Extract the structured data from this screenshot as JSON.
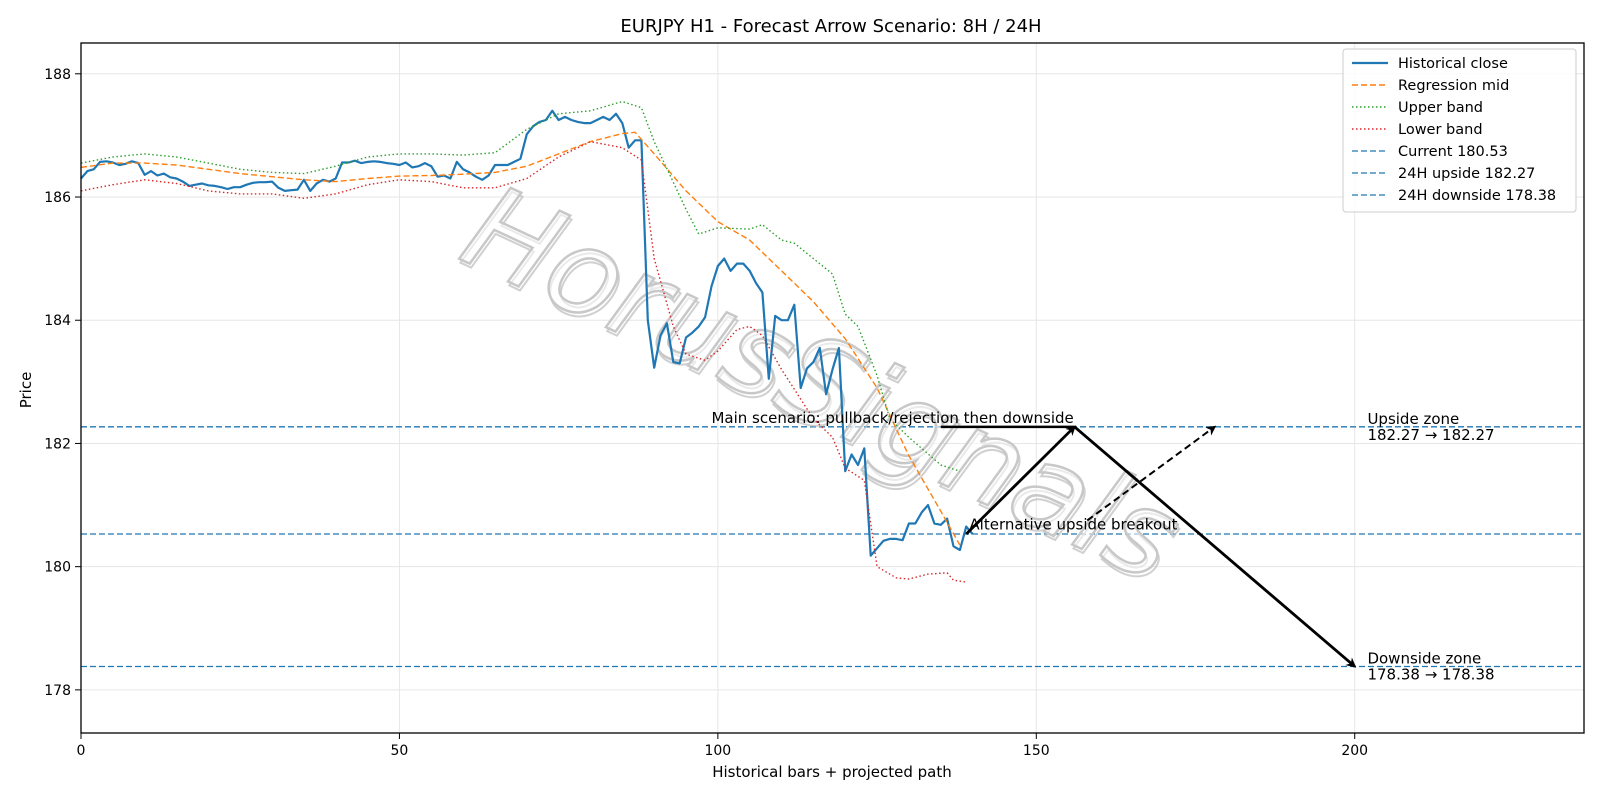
{
  "chart_data": {
    "type": "line",
    "title": "EURJPY H1 - Forecast Arrow Scenario: 8H / 24H",
    "xlabel": "Historical bars + projected path",
    "ylabel": "Price",
    "xlim": [
      0,
      236
    ],
    "ylim": [
      177.3,
      188.5
    ],
    "x_ticks": [
      0,
      50,
      100,
      150,
      200
    ],
    "y_ticks": [
      178,
      180,
      182,
      184,
      186,
      188
    ],
    "grid": true,
    "legend_position": "top-right",
    "series": [
      {
        "name": "Historical close",
        "color": "#1f77b4",
        "style": "solid",
        "points": [
          [
            0,
            186.3
          ],
          [
            1,
            186.42
          ],
          [
            2,
            186.45
          ],
          [
            3,
            186.57
          ],
          [
            4,
            186.58
          ],
          [
            5,
            186.56
          ],
          [
            6,
            186.52
          ],
          [
            7,
            186.54
          ],
          [
            8,
            186.58
          ],
          [
            9,
            186.55
          ],
          [
            10,
            186.36
          ],
          [
            11,
            186.42
          ],
          [
            12,
            186.35
          ],
          [
            13,
            186.38
          ],
          [
            14,
            186.32
          ],
          [
            15,
            186.3
          ],
          [
            16,
            186.25
          ],
          [
            17,
            186.18
          ],
          [
            18,
            186.2
          ],
          [
            19,
            186.22
          ],
          [
            20,
            186.19
          ],
          [
            21,
            186.18
          ],
          [
            22,
            186.16
          ],
          [
            23,
            186.13
          ],
          [
            24,
            186.16
          ],
          [
            25,
            186.16
          ],
          [
            26,
            186.2
          ],
          [
            27,
            186.23
          ],
          [
            28,
            186.24
          ],
          [
            29,
            186.24
          ],
          [
            30,
            186.25
          ],
          [
            31,
            186.15
          ],
          [
            32,
            186.1
          ],
          [
            33,
            186.11
          ],
          [
            34,
            186.12
          ],
          [
            35,
            186.28
          ],
          [
            36,
            186.1
          ],
          [
            37,
            186.22
          ],
          [
            38,
            186.28
          ],
          [
            39,
            186.25
          ],
          [
            40,
            186.3
          ],
          [
            41,
            186.56
          ],
          [
            42,
            186.56
          ],
          [
            43,
            186.59
          ],
          [
            44,
            186.55
          ],
          [
            45,
            186.57
          ],
          [
            46,
            186.58
          ],
          [
            47,
            186.57
          ],
          [
            48,
            186.55
          ],
          [
            49,
            186.54
          ],
          [
            50,
            186.52
          ],
          [
            51,
            186.56
          ],
          [
            52,
            186.48
          ],
          [
            53,
            186.5
          ],
          [
            54,
            186.55
          ],
          [
            55,
            186.5
          ],
          [
            56,
            186.33
          ],
          [
            57,
            186.35
          ],
          [
            58,
            186.3
          ],
          [
            59,
            186.57
          ],
          [
            60,
            186.45
          ],
          [
            61,
            186.4
          ],
          [
            62,
            186.33
          ],
          [
            63,
            186.28
          ],
          [
            64,
            186.35
          ],
          [
            65,
            186.52
          ],
          [
            66,
            186.52
          ],
          [
            67,
            186.52
          ],
          [
            68,
            186.57
          ],
          [
            69,
            186.62
          ],
          [
            70,
            187.02
          ],
          [
            71,
            187.15
          ],
          [
            72,
            187.22
          ],
          [
            73,
            187.25
          ],
          [
            74,
            187.4
          ],
          [
            75,
            187.25
          ],
          [
            76,
            187.3
          ],
          [
            77,
            187.25
          ],
          [
            78,
            187.22
          ],
          [
            79,
            187.2
          ],
          [
            80,
            187.2
          ],
          [
            81,
            187.25
          ],
          [
            82,
            187.3
          ],
          [
            83,
            187.25
          ],
          [
            84,
            187.35
          ],
          [
            85,
            187.2
          ],
          [
            86,
            186.8
          ],
          [
            87,
            186.92
          ],
          [
            88,
            186.92
          ],
          [
            89,
            184.0
          ],
          [
            90,
            183.23
          ],
          [
            91,
            183.75
          ],
          [
            92,
            183.95
          ],
          [
            93,
            183.32
          ],
          [
            94,
            183.3
          ],
          [
            95,
            183.72
          ],
          [
            96,
            183.8
          ],
          [
            97,
            183.9
          ],
          [
            98,
            184.05
          ],
          [
            99,
            184.55
          ],
          [
            100,
            184.88
          ],
          [
            101,
            185.0
          ],
          [
            102,
            184.8
          ],
          [
            103,
            184.92
          ],
          [
            104,
            184.92
          ],
          [
            105,
            184.8
          ],
          [
            106,
            184.6
          ],
          [
            107,
            184.45
          ],
          [
            108,
            183.05
          ],
          [
            109,
            184.07
          ],
          [
            110,
            184.0
          ],
          [
            111,
            184.0
          ],
          [
            112,
            184.25
          ],
          [
            113,
            182.9
          ],
          [
            114,
            183.22
          ],
          [
            115,
            183.32
          ],
          [
            116,
            183.55
          ],
          [
            117,
            182.8
          ],
          [
            118,
            183.2
          ],
          [
            119,
            183.55
          ],
          [
            120,
            181.55
          ],
          [
            121,
            181.82
          ],
          [
            122,
            181.65
          ],
          [
            123,
            181.92
          ],
          [
            124,
            180.18
          ],
          [
            125,
            180.3
          ],
          [
            126,
            180.42
          ],
          [
            127,
            180.45
          ],
          [
            128,
            180.45
          ],
          [
            129,
            180.43
          ],
          [
            130,
            180.7
          ],
          [
            131,
            180.7
          ],
          [
            132,
            180.88
          ],
          [
            133,
            181.0
          ],
          [
            134,
            180.7
          ],
          [
            135,
            180.68
          ],
          [
            136,
            180.78
          ],
          [
            137,
            180.33
          ],
          [
            138,
            180.27
          ],
          [
            139,
            180.65
          ],
          [
            140,
            180.53
          ]
        ]
      },
      {
        "name": "Regression mid",
        "color": "#ff7f0e",
        "style": "dashed",
        "points": [
          [
            0,
            186.48
          ],
          [
            5,
            186.55
          ],
          [
            10,
            186.55
          ],
          [
            15,
            186.52
          ],
          [
            20,
            186.45
          ],
          [
            25,
            186.38
          ],
          [
            30,
            186.33
          ],
          [
            35,
            186.28
          ],
          [
            40,
            186.25
          ],
          [
            45,
            186.3
          ],
          [
            50,
            186.34
          ],
          [
            55,
            186.35
          ],
          [
            60,
            186.37
          ],
          [
            65,
            186.4
          ],
          [
            70,
            186.5
          ],
          [
            75,
            186.7
          ],
          [
            80,
            186.9
          ],
          [
            85,
            187.03
          ],
          [
            87,
            187.05
          ],
          [
            90,
            186.7
          ],
          [
            95,
            186.1
          ],
          [
            100,
            185.6
          ],
          [
            105,
            185.3
          ],
          [
            110,
            184.8
          ],
          [
            115,
            184.3
          ],
          [
            120,
            183.7
          ],
          [
            125,
            182.9
          ],
          [
            130,
            181.8
          ],
          [
            135,
            180.9
          ],
          [
            138,
            180.35
          ]
        ]
      },
      {
        "name": "Upper band",
        "color": "#2ca02c",
        "style": "dotted",
        "points": [
          [
            0,
            186.55
          ],
          [
            5,
            186.65
          ],
          [
            10,
            186.7
          ],
          [
            15,
            186.65
          ],
          [
            20,
            186.55
          ],
          [
            25,
            186.45
          ],
          [
            30,
            186.4
          ],
          [
            35,
            186.38
          ],
          [
            40,
            186.5
          ],
          [
            45,
            186.65
          ],
          [
            50,
            186.7
          ],
          [
            55,
            186.7
          ],
          [
            60,
            186.68
          ],
          [
            65,
            186.72
          ],
          [
            70,
            187.1
          ],
          [
            75,
            187.35
          ],
          [
            80,
            187.4
          ],
          [
            85,
            187.55
          ],
          [
            88,
            187.45
          ],
          [
            90,
            186.9
          ],
          [
            95,
            185.8
          ],
          [
            97,
            185.4
          ],
          [
            100,
            185.5
          ],
          [
            105,
            185.48
          ],
          [
            107,
            185.55
          ],
          [
            110,
            185.3
          ],
          [
            112,
            185.25
          ],
          [
            115,
            185.0
          ],
          [
            118,
            184.75
          ],
          [
            120,
            184.1
          ],
          [
            122,
            183.9
          ],
          [
            125,
            183.1
          ],
          [
            127,
            182.4
          ],
          [
            130,
            182.1
          ],
          [
            135,
            181.65
          ],
          [
            138,
            181.55
          ]
        ]
      },
      {
        "name": "Lower band",
        "color": "#d62728",
        "style": "dotted",
        "points": [
          [
            0,
            186.1
          ],
          [
            5,
            186.2
          ],
          [
            10,
            186.28
          ],
          [
            15,
            186.22
          ],
          [
            20,
            186.1
          ],
          [
            25,
            186.05
          ],
          [
            30,
            186.05
          ],
          [
            35,
            185.98
          ],
          [
            40,
            186.05
          ],
          [
            45,
            186.2
          ],
          [
            50,
            186.28
          ],
          [
            55,
            186.25
          ],
          [
            60,
            186.15
          ],
          [
            65,
            186.15
          ],
          [
            70,
            186.3
          ],
          [
            75,
            186.65
          ],
          [
            80,
            186.9
          ],
          [
            85,
            186.8
          ],
          [
            88,
            186.6
          ],
          [
            90,
            185.0
          ],
          [
            93,
            183.9
          ],
          [
            95,
            183.45
          ],
          [
            98,
            183.35
          ],
          [
            100,
            183.5
          ],
          [
            103,
            183.85
          ],
          [
            105,
            183.9
          ],
          [
            107,
            183.75
          ],
          [
            110,
            183.2
          ],
          [
            115,
            182.4
          ],
          [
            118,
            182.1
          ],
          [
            120,
            181.6
          ],
          [
            123,
            181.4
          ],
          [
            125,
            180.0
          ],
          [
            128,
            179.82
          ],
          [
            130,
            179.8
          ],
          [
            133,
            179.88
          ],
          [
            136,
            179.9
          ],
          [
            137,
            179.78
          ],
          [
            139,
            179.75
          ]
        ]
      }
    ],
    "horizontal_lines": [
      {
        "name": "Current 180.53",
        "y": 180.53,
        "color": "#1f77b4",
        "style": "dashed"
      },
      {
        "name": "24H upside 182.27",
        "y": 182.27,
        "color": "#1f77b4",
        "style": "dashed"
      },
      {
        "name": "24H downside 178.38",
        "y": 178.38,
        "color": "#1f77b4",
        "style": "dashed"
      }
    ],
    "arrows": [
      {
        "from": [
          139,
          180.53
        ],
        "to": [
          156,
          182.27
        ],
        "style": "solid"
      },
      {
        "from": [
          156,
          182.27
        ],
        "to": [
          200,
          178.38
        ],
        "style": "solid"
      },
      {
        "from": [
          158,
          180.75
        ],
        "to": [
          178,
          182.27
        ],
        "style": "dashed"
      }
    ],
    "main_line": {
      "x1": 135,
      "x2": 156,
      "y": 182.27
    },
    "annotations": [
      {
        "text": "Main scenario: pullback/rejection then downside",
        "x": 99,
        "y": 182.33
      },
      {
        "text": "Alternative upside breakout",
        "x": 139.5,
        "y": 180.6
      }
    ],
    "zones": [
      {
        "line1": "Upside zone",
        "line2": "182.27 → 182.27",
        "x": 202,
        "y": 182.27
      },
      {
        "line1": "Downside zone",
        "line2": "178.38 → 178.38",
        "x": 202,
        "y": 178.38
      }
    ],
    "watermark": "HorusSignals"
  }
}
